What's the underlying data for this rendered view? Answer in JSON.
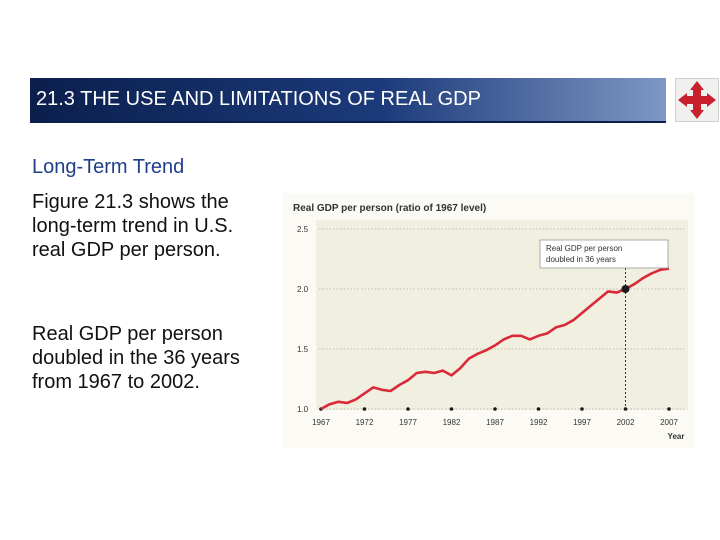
{
  "slide": {
    "title": "21.3 THE USE AND LIMITATIONS OF REAL GDP",
    "subheading": "Long-Term Trend",
    "paragraph1": "Figure 21.3 shows the long-term trend in U.S. real GDP per person.",
    "paragraph2": "Real GDP per person doubled in the 36 years from 1967 to 2002."
  },
  "colors": {
    "line": "#d92a3a",
    "plot_bg": "#f1efe0",
    "grid": "#bdbcae",
    "text": "#333333",
    "marker": "#1a1a1a",
    "title_text": "#1f3f8a"
  },
  "chart_data": {
    "type": "line",
    "title": "Real GDP per person (ratio of 1967 level)",
    "xlabel": "Year",
    "ylabel": "",
    "xlim": [
      1967,
      2007
    ],
    "ylim": [
      1.0,
      2.5
    ],
    "x_ticks": [
      1967,
      1972,
      1977,
      1982,
      1987,
      1992,
      1997,
      2002,
      2007
    ],
    "y_ticks": [
      {
        "value": 1.0,
        "label": "1.0"
      },
      {
        "value": 1.5,
        "label": "1.5"
      },
      {
        "value": 2.0,
        "label": "2.0"
      },
      {
        "value": 2.5,
        "label": "2.5"
      }
    ],
    "series": [
      {
        "name": "Real GDP per person",
        "x": [
          1967,
          1968,
          1969,
          1970,
          1971,
          1972,
          1973,
          1974,
          1975,
          1976,
          1977,
          1978,
          1979,
          1980,
          1981,
          1982,
          1983,
          1984,
          1985,
          1986,
          1987,
          1988,
          1989,
          1990,
          1991,
          1992,
          1993,
          1994,
          1995,
          1996,
          1997,
          1998,
          1999,
          2000,
          2001,
          2002,
          2003,
          2004,
          2005,
          2006,
          2007
        ],
        "values": [
          1.0,
          1.04,
          1.06,
          1.05,
          1.08,
          1.13,
          1.18,
          1.16,
          1.15,
          1.2,
          1.24,
          1.3,
          1.31,
          1.3,
          1.32,
          1.28,
          1.34,
          1.42,
          1.46,
          1.49,
          1.53,
          1.58,
          1.61,
          1.61,
          1.58,
          1.61,
          1.63,
          1.68,
          1.7,
          1.74,
          1.8,
          1.86,
          1.92,
          1.98,
          1.97,
          2.0,
          2.04,
          2.09,
          2.13,
          2.16,
          2.17
        ]
      }
    ],
    "annotation": {
      "text_lines": [
        "Real GDP per person",
        "doubled in 36 years"
      ],
      "x": 2002,
      "y": 2.0
    },
    "grid": "horizontal dotted"
  }
}
